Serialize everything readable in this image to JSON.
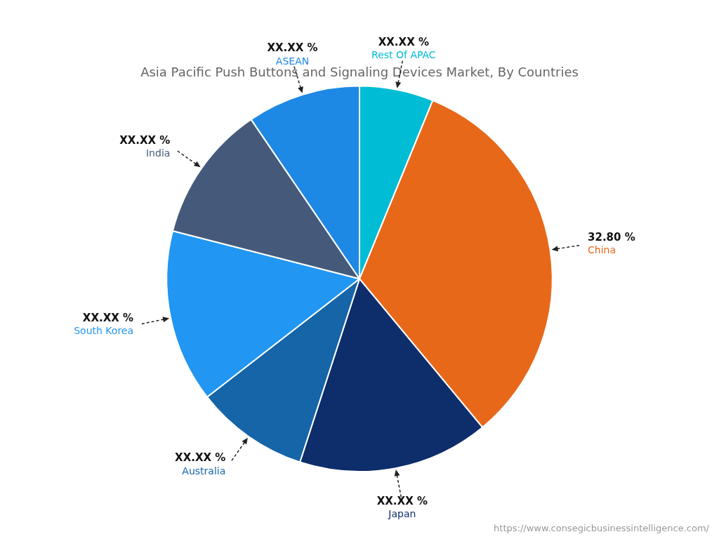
{
  "chart_data": {
    "type": "pie",
    "title": "Asia Pacific Push Buttons and Signaling Devices Market, By Countries",
    "categories": [
      "Rest Of APAC",
      "China",
      "Japan",
      "Australia",
      "South Korea",
      "India",
      "ASEAN"
    ],
    "values": [
      6.2,
      32.8,
      16.0,
      9.5,
      14.5,
      11.5,
      9.5
    ],
    "value_labels": [
      "XX.XX %",
      "32.80 %",
      "XX.XX %",
      "XX.XX %",
      "XX.XX %",
      "XX.XX %",
      "XX.XX %"
    ],
    "colors": [
      "#00BCD4",
      "#E8681A",
      "#0D2D6B",
      "#1565A8",
      "#2196F3",
      "#455A7A",
      "#1E88E5"
    ],
    "data_labels": true,
    "annotations": [
      "https://www.consegicbusinessintelligence.com/"
    ]
  }
}
